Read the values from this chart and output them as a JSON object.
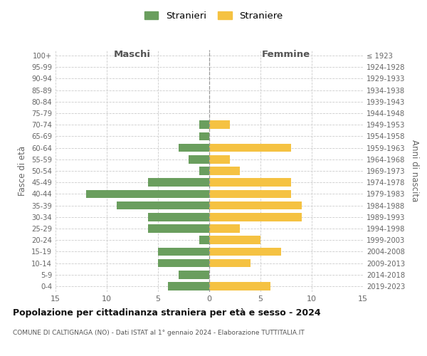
{
  "age_groups": [
    "0-4",
    "5-9",
    "10-14",
    "15-19",
    "20-24",
    "25-29",
    "30-34",
    "35-39",
    "40-44",
    "45-49",
    "50-54",
    "55-59",
    "60-64",
    "65-69",
    "70-74",
    "75-79",
    "80-84",
    "85-89",
    "90-94",
    "95-99",
    "100+"
  ],
  "birth_years": [
    "2019-2023",
    "2014-2018",
    "2009-2013",
    "2004-2008",
    "1999-2003",
    "1994-1998",
    "1989-1993",
    "1984-1988",
    "1979-1983",
    "1974-1978",
    "1969-1973",
    "1964-1968",
    "1959-1963",
    "1954-1958",
    "1949-1953",
    "1944-1948",
    "1939-1943",
    "1934-1938",
    "1929-1933",
    "1924-1928",
    "≤ 1923"
  ],
  "maschi": [
    4,
    3,
    5,
    5,
    1,
    6,
    6,
    9,
    12,
    6,
    1,
    2,
    3,
    1,
    1,
    0,
    0,
    0,
    0,
    0,
    0
  ],
  "femmine": [
    6,
    0,
    4,
    7,
    5,
    3,
    9,
    9,
    8,
    8,
    3,
    2,
    8,
    0,
    2,
    0,
    0,
    0,
    0,
    0,
    0
  ],
  "male_color": "#6a9e5e",
  "female_color": "#f5c242",
  "title": "Popolazione per cittadinanza straniera per età e sesso - 2024",
  "subtitle": "COMUNE DI CALTIGNAGA (NO) - Dati ISTAT al 1° gennaio 2024 - Elaborazione TUTTITALIA.IT",
  "legend_male": "Stranieri",
  "legend_female": "Straniere",
  "xlabel_left": "Maschi",
  "xlabel_right": "Femmine",
  "ylabel_left": "Fasce di età",
  "ylabel_right": "Anni di nascita",
  "xlim": 15,
  "background_color": "#ffffff",
  "grid_color": "#cccccc"
}
